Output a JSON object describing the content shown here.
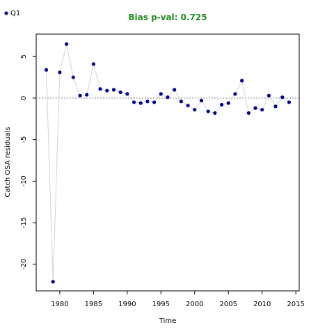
{
  "chart_data": {
    "type": "scatter",
    "title": "Bias p-val: 0.725",
    "title_color": "#228B22",
    "xlabel": "Time",
    "ylabel": "Catch OSA residuals",
    "xlim": [
      1976.5,
      2015.5
    ],
    "ylim": [
      -23.2,
      7.7
    ],
    "xticks": [
      1980,
      1985,
      1990,
      1995,
      2000,
      2005,
      2010,
      2015
    ],
    "yticks": [
      5,
      0,
      -5,
      -10,
      -15,
      -20
    ],
    "reference_line": 0,
    "point_color": "#00008B",
    "line_color": "#d3d3d3",
    "reference_color": "#888888",
    "legend_position": "top-left",
    "series": [
      {
        "name": "Q1",
        "x": [
          1978,
          1979,
          1980,
          1981,
          1982,
          1983,
          1984,
          1985,
          1986,
          1987,
          1988,
          1989,
          1990,
          1991,
          1992,
          1993,
          1994,
          1995,
          1996,
          1997,
          1998,
          1999,
          2000,
          2001,
          2002,
          2003,
          2004,
          2005,
          2006,
          2007,
          2008,
          2009,
          2010,
          2011,
          2012,
          2013,
          2014
        ],
        "y": [
          3.4,
          -22.1,
          3.1,
          6.5,
          2.5,
          0.3,
          0.4,
          4.1,
          1.1,
          0.9,
          1.0,
          0.7,
          0.5,
          -0.5,
          -0.6,
          -0.4,
          -0.5,
          0.5,
          0.1,
          1.0,
          -0.4,
          -0.9,
          -1.4,
          -0.3,
          -1.6,
          -1.8,
          -0.8,
          -0.6,
          0.5,
          2.1,
          -1.8,
          -1.2,
          -1.4,
          0.3,
          -1.0,
          0.1,
          -0.5
        ]
      }
    ]
  }
}
